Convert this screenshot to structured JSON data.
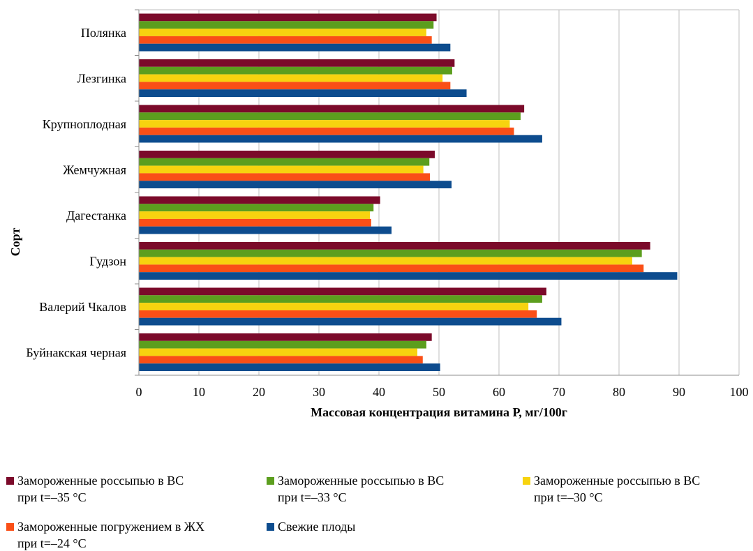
{
  "chart_data": {
    "type": "bar",
    "orientation": "horizontal",
    "title": "",
    "xlabel": "Массовая концентрация витамина Р, мг/100г",
    "ylabel": "Сорт",
    "xlim": [
      0,
      100
    ],
    "xticks": [
      0,
      10,
      20,
      30,
      40,
      50,
      60,
      70,
      80,
      90,
      100
    ],
    "grid": true,
    "legend_position": "bottom",
    "categories": [
      "Полянка",
      "Лезгинка",
      "Крупноплодная",
      "Жемчужная",
      "Дагестанка",
      "Гудзон",
      "Валерий Чкалов",
      "Буйнакская черная"
    ],
    "series": [
      {
        "name": "Замороженные россыпью в ВС при t=–35 °C",
        "line1": "Замороженные россыпью в ВС",
        "line2": "при t=–35 °C",
        "color": "#7b0a2a",
        "values": [
          49.6,
          52.6,
          64.2,
          49.3,
          40.2,
          85.2,
          67.9,
          48.8
        ]
      },
      {
        "name": "Замороженные россыпью в ВС при t=–33 °C",
        "line1": "Замороженные россыпью в ВС",
        "line2": "при t=–33 °C",
        "color": "#5c9e1e",
        "values": [
          49.1,
          52.2,
          63.6,
          48.4,
          39.1,
          83.8,
          67.2,
          47.9
        ]
      },
      {
        "name": "Замороженные россыпью в ВС при t=–30 °C",
        "line1": "Замороженные россыпью в ВС",
        "line2": "при t=–30 °C",
        "color": "#f7d30f",
        "values": [
          47.9,
          50.6,
          61.8,
          47.4,
          38.5,
          82.2,
          64.9,
          46.4
        ]
      },
      {
        "name": "Замороженные погружением в ЖХ при t=–24 °C",
        "line1": "Замороженные погружением в ЖХ",
        "line2": "при t=–24 °C",
        "color": "#fa4f17",
        "values": [
          48.8,
          51.9,
          62.5,
          48.5,
          38.7,
          84.1,
          66.3,
          47.3
        ]
      },
      {
        "name": "Свежие плоды",
        "line1": "Свежие плоды",
        "line2": "",
        "color": "#0d4c8e",
        "values": [
          51.9,
          54.6,
          67.2,
          52.1,
          42.1,
          89.7,
          70.4,
          50.2
        ]
      }
    ]
  }
}
